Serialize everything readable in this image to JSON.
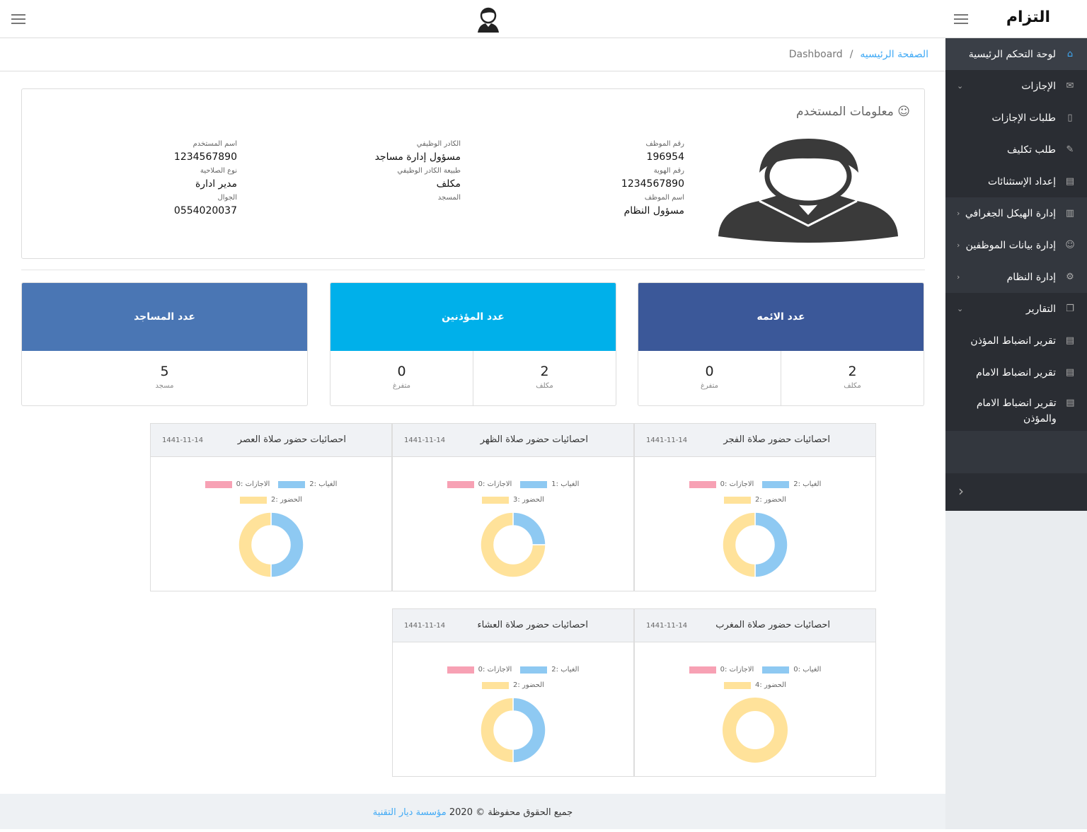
{
  "header": {
    "logo": "التزام"
  },
  "sidebar": {
    "items": [
      {
        "label": "لوحة التحكم الرئيسية",
        "icon": "home-icon",
        "glyph": "⌂"
      },
      {
        "label": "الإجازات",
        "icon": "inbox-icon",
        "glyph": "✉"
      },
      {
        "label": "طلبات الإجازات",
        "icon": "document-icon",
        "glyph": "▯"
      },
      {
        "label": "طلب تكليف",
        "icon": "edit-icon",
        "glyph": "✎"
      },
      {
        "label": "إعداد الإستثنائات",
        "icon": "book-icon",
        "glyph": "▤"
      },
      {
        "label": "إدارة الهيكل الجغرافي",
        "icon": "map-icon",
        "glyph": "▥"
      },
      {
        "label": "إدارة بيانات الموظفين",
        "icon": "users-icon",
        "glyph": "☺"
      },
      {
        "label": "إدارة النظام",
        "icon": "gear-icon",
        "glyph": "⚙"
      },
      {
        "label": "التقارير",
        "icon": "copy-icon",
        "glyph": "❐"
      },
      {
        "label": "تقرير انضباط المؤذن",
        "icon": "book-icon",
        "glyph": "▤"
      },
      {
        "label": "تقرير انضباط الامام",
        "icon": "book-icon",
        "glyph": "▤"
      },
      {
        "label": "تقرير انضباط الامام والمؤذن",
        "icon": "book-icon",
        "glyph": "▤"
      }
    ]
  },
  "breadcrumb": {
    "home": "الصفحة الرئيسيه",
    "separator": "/",
    "current": "Dashboard"
  },
  "user_info": {
    "title": "معلومات المستخدم",
    "fields": [
      {
        "label": "رقم الموظف",
        "value": "196954"
      },
      {
        "label": "رقم الهوية",
        "value": "1234567890"
      },
      {
        "label": "اسم الموظف",
        "value": "مسؤول النظام"
      },
      {
        "label": "الكادر الوظيفي",
        "value": "مسؤول إدارة مساجد"
      },
      {
        "label": "طبيعة الكادر الوظيفي",
        "value": "مكلف"
      },
      {
        "label": "المسجد",
        "value": ""
      },
      {
        "label": "اسم المستخدم",
        "value": "1234567890"
      },
      {
        "label": "نوع الصلاحية",
        "value": "مدير ادارة"
      },
      {
        "label": "الجوال",
        "value": "0554020037"
      }
    ]
  },
  "stats": [
    {
      "title": "عدد الائمه",
      "color": "#3b5899",
      "cells": [
        {
          "value": "2",
          "label": "مكلف"
        },
        {
          "value": "0",
          "label": "متفرغ"
        }
      ]
    },
    {
      "title": "عدد المؤذنين",
      "color": "#00b0ea",
      "cells": [
        {
          "value": "2",
          "label": "مكلف"
        },
        {
          "value": "0",
          "label": "متفرغ"
        }
      ]
    },
    {
      "title": "عدد المساجد",
      "color": "#4a76b4",
      "cells": [
        {
          "value": "5",
          "label": "مسجد"
        }
      ]
    }
  ],
  "chart_data": [
    {
      "type": "pie",
      "title": "احصائيات حضور صلاة الفجر",
      "date": "1441-11-14",
      "categories": [
        "الغياب",
        "الاجازات",
        "الحضور"
      ],
      "values": [
        2,
        0,
        2
      ]
    },
    {
      "type": "pie",
      "title": "احصائيات حضور صلاة الظهر",
      "date": "1441-11-14",
      "categories": [
        "الغياب",
        "الاجازات",
        "الحضور"
      ],
      "values": [
        1,
        0,
        3
      ]
    },
    {
      "type": "pie",
      "title": "احصائيات حضور صلاة العصر",
      "date": "1441-11-14",
      "categories": [
        "الغياب",
        "الاجازات",
        "الحضور"
      ],
      "values": [
        2,
        0,
        2
      ]
    },
    {
      "type": "pie",
      "title": "احصائيات حضور صلاة المغرب",
      "date": "1441-11-14",
      "categories": [
        "الغياب",
        "الاجازات",
        "الحضور"
      ],
      "values": [
        0,
        0,
        4
      ]
    },
    {
      "type": "pie",
      "title": "احصائيات حضور صلاة العشاء",
      "date": "1441-11-14",
      "categories": [
        "الغياب",
        "الاجازات",
        "الحضور"
      ],
      "values": [
        2,
        0,
        2
      ]
    }
  ],
  "colors": {
    "absence": "#8ec9f2",
    "leave": "#f7a1b4",
    "attendance": "#ffe29a"
  },
  "footer": {
    "text": "جميع الحقوق محفوظة © 2020",
    "org": "مؤسسة ديار التقنية"
  }
}
